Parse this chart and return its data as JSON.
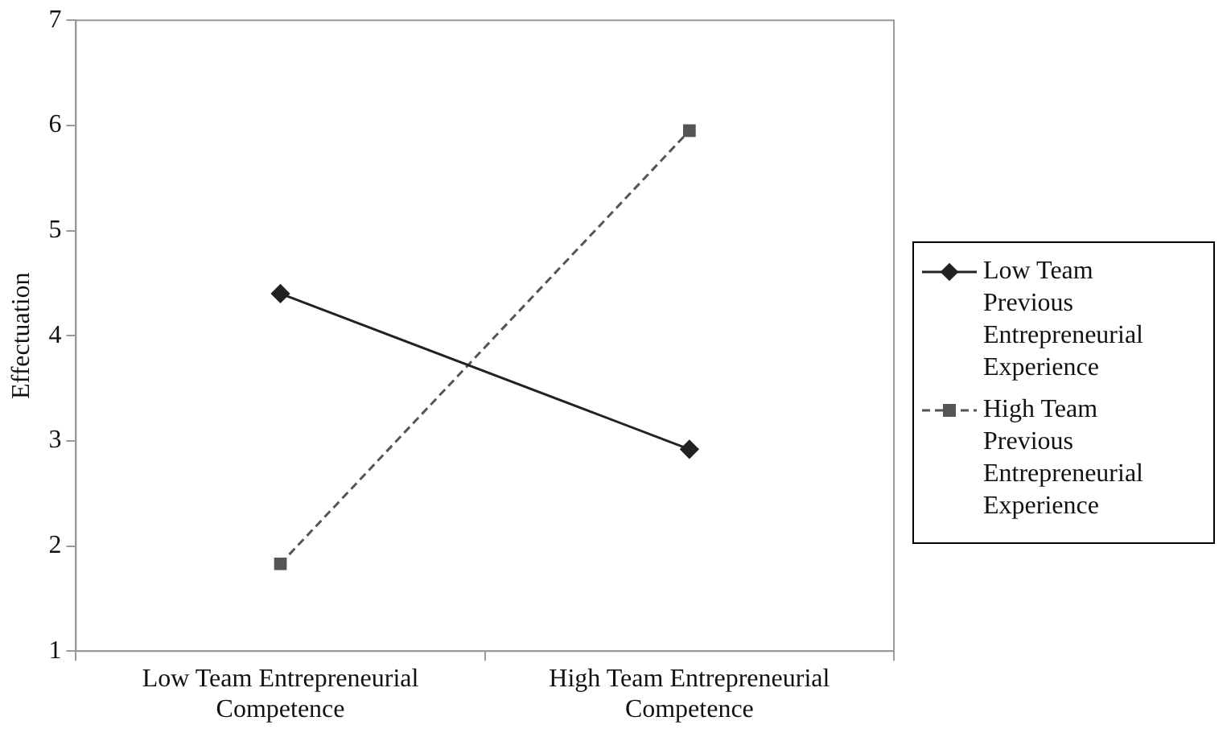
{
  "chart_data": {
    "type": "line",
    "ylabel": "Effectuation",
    "categories": [
      "Low Team Entrepreneurial Competence",
      "High Team Entrepreneurial Competence"
    ],
    "series": [
      {
        "name": "Low Team Previous Entrepreneurial Experience",
        "color": "#222222",
        "values": [
          4.4,
          2.92
        ],
        "marker": "diamond",
        "line_style": "solid"
      },
      {
        "name": "High Team Previous Entrepreneurial Experience",
        "color": "#555555",
        "values": [
          1.83,
          5.95
        ],
        "marker": "square",
        "line_style": "dashed"
      }
    ],
    "ylim": [
      1,
      7
    ],
    "yticks": [
      1,
      2,
      3,
      4,
      5,
      6,
      7
    ],
    "grid": false,
    "legend": "right"
  }
}
